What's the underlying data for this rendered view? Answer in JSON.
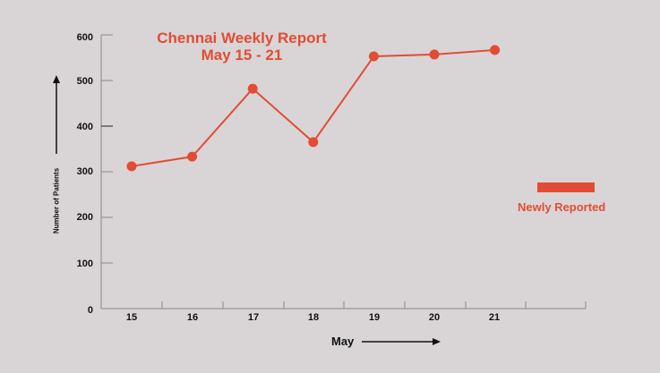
{
  "chart_data": {
    "type": "line",
    "title": "Chennai Weekly Report",
    "subtitle": "May 15 - 21",
    "xlabel": "May",
    "ylabel": "Number of Patients",
    "categories": [
      "15",
      "16",
      "17",
      "18",
      "19",
      "20",
      "21"
    ],
    "series": [
      {
        "name": "Newly Reported",
        "color": "#e24c34",
        "values": [
          312,
          333,
          482,
          365,
          553,
          557,
          567
        ]
      }
    ],
    "ylim": [
      0,
      600
    ],
    "yticks": [
      "0",
      "100",
      "200",
      "300",
      "400",
      "500",
      "600"
    ],
    "grid": false,
    "legend_position": "right"
  },
  "legend": {
    "label": "Newly Reported"
  }
}
